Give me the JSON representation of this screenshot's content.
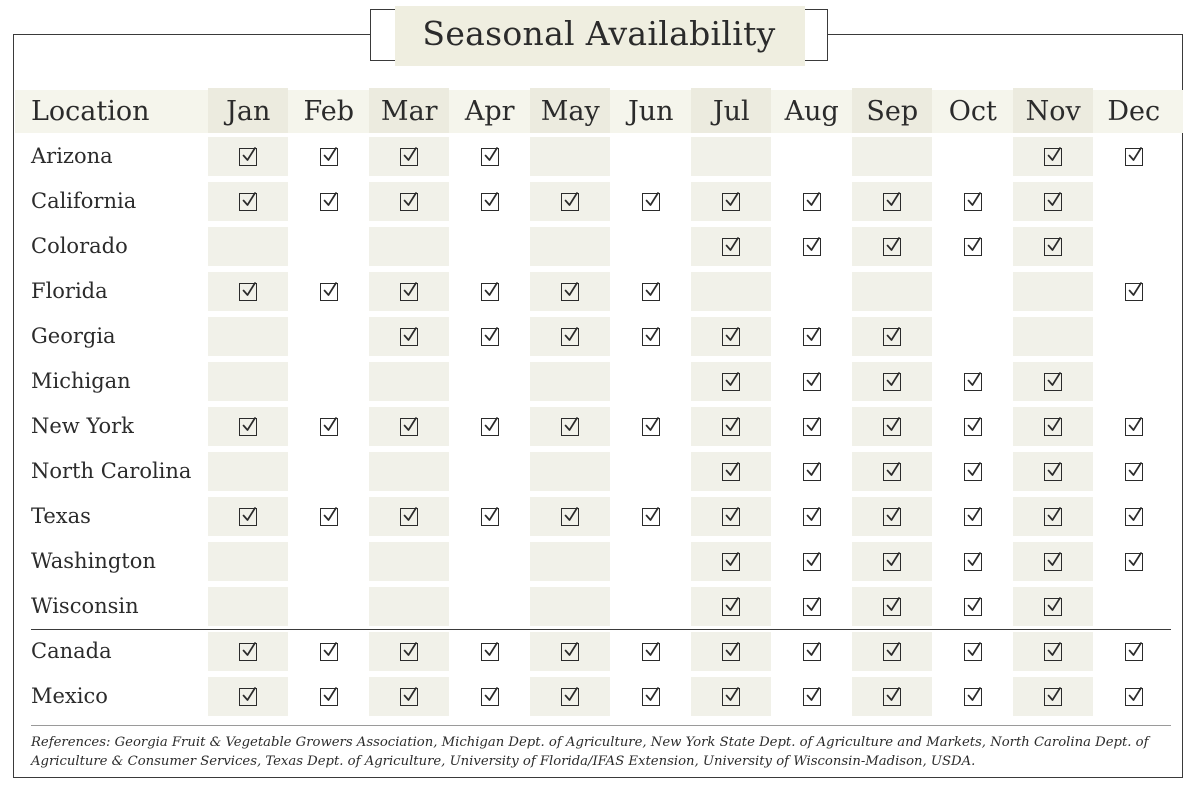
{
  "chart_data": {
    "type": "table",
    "title": "Seasonal Availability",
    "location_header": "Location",
    "months": [
      "Jan",
      "Feb",
      "Mar",
      "Apr",
      "May",
      "Jun",
      "Jul",
      "Aug",
      "Sep",
      "Oct",
      "Nov",
      "Dec"
    ],
    "groups": [
      {
        "rows": [
          {
            "location": "Arizona",
            "available": [
              1,
              1,
              1,
              1,
              0,
              0,
              0,
              0,
              0,
              0,
              1,
              1
            ]
          },
          {
            "location": "California",
            "available": [
              1,
              1,
              1,
              1,
              1,
              1,
              1,
              1,
              1,
              1,
              1,
              0
            ]
          },
          {
            "location": "Colorado",
            "available": [
              0,
              0,
              0,
              0,
              0,
              0,
              1,
              1,
              1,
              1,
              1,
              0
            ]
          },
          {
            "location": "Florida",
            "available": [
              1,
              1,
              1,
              1,
              1,
              1,
              0,
              0,
              0,
              0,
              0,
              1
            ]
          },
          {
            "location": "Georgia",
            "available": [
              0,
              0,
              1,
              1,
              1,
              1,
              1,
              1,
              1,
              0,
              0,
              0
            ]
          },
          {
            "location": "Michigan",
            "available": [
              0,
              0,
              0,
              0,
              0,
              0,
              1,
              1,
              1,
              1,
              1,
              0
            ]
          },
          {
            "location": "New York",
            "available": [
              1,
              1,
              1,
              1,
              1,
              1,
              1,
              1,
              1,
              1,
              1,
              1
            ]
          },
          {
            "location": "North Carolina",
            "available": [
              0,
              0,
              0,
              0,
              0,
              0,
              1,
              1,
              1,
              1,
              1,
              1
            ]
          },
          {
            "location": "Texas",
            "available": [
              1,
              1,
              1,
              1,
              1,
              1,
              1,
              1,
              1,
              1,
              1,
              1
            ]
          },
          {
            "location": "Washington",
            "available": [
              0,
              0,
              0,
              0,
              0,
              0,
              1,
              1,
              1,
              1,
              1,
              1
            ]
          },
          {
            "location": "Wisconsin",
            "available": [
              0,
              0,
              0,
              0,
              0,
              0,
              1,
              1,
              1,
              1,
              1,
              0
            ]
          }
        ]
      },
      {
        "rows": [
          {
            "location": "Canada",
            "available": [
              1,
              1,
              1,
              1,
              1,
              1,
              1,
              1,
              1,
              1,
              1,
              1
            ]
          },
          {
            "location": "Mexico",
            "available": [
              1,
              1,
              1,
              1,
              1,
              1,
              1,
              1,
              1,
              1,
              1,
              1
            ]
          }
        ]
      }
    ],
    "shaded_columns": [
      "Jan",
      "Mar",
      "May",
      "Jul",
      "Sep",
      "Nov"
    ],
    "references": "References: Georgia Fruit & Vegetable Growers Association, Michigan Dept. of Agriculture, New York State Dept. of Agriculture and Markets, North Carolina Dept. of Agriculture & Consumer Services, Texas Dept. of Agriculture, University of Florida/IFAS Extension, University of  Wisconsin-Madison, USDA."
  },
  "colors": {
    "shade": "#f1f1e9",
    "header_band": "#f5f5ec",
    "title_fill": "#efeee0",
    "ink": "#2b2b2b",
    "frame": "#3a3a3a"
  }
}
